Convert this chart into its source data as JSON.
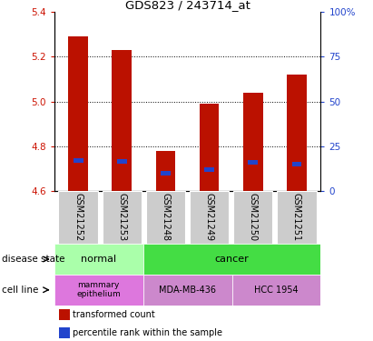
{
  "title": "GDS823 / 243714_at",
  "samples": [
    "GSM21252",
    "GSM21253",
    "GSM21248",
    "GSM21249",
    "GSM21250",
    "GSM21251"
  ],
  "transformed_counts": [
    5.29,
    5.23,
    4.78,
    4.99,
    5.04,
    5.12
  ],
  "percentile_ranks_pct": [
    17.0,
    16.5,
    10.0,
    12.0,
    16.0,
    15.0
  ],
  "ylim_left": [
    4.6,
    5.4
  ],
  "yticks_left": [
    4.6,
    4.8,
    5.0,
    5.2,
    5.4
  ],
  "ylim_right": [
    0,
    100
  ],
  "yticks_right": [
    0,
    25,
    50,
    75,
    100
  ],
  "yticklabels_right": [
    "0",
    "25",
    "50",
    "75",
    "100%"
  ],
  "bar_color": "#bb1100",
  "percentile_color": "#2244cc",
  "base_value": 4.6,
  "sample_bg_color": "#cccccc",
  "sample_bg_edge_color": "#ffffff",
  "disease_normal_color": "#aaffaa",
  "disease_cancer_color": "#44dd44",
  "cell_line_mammary_color": "#dd77dd",
  "cell_line_mda_color": "#cc88cc",
  "cell_line_hcc_color": "#cc88cc",
  "row_label_disease": "disease state",
  "row_label_cell": "cell line",
  "legend_items": [
    {
      "label": "transformed count",
      "color": "#bb1100"
    },
    {
      "label": "percentile rank within the sample",
      "color": "#2244cc"
    }
  ]
}
